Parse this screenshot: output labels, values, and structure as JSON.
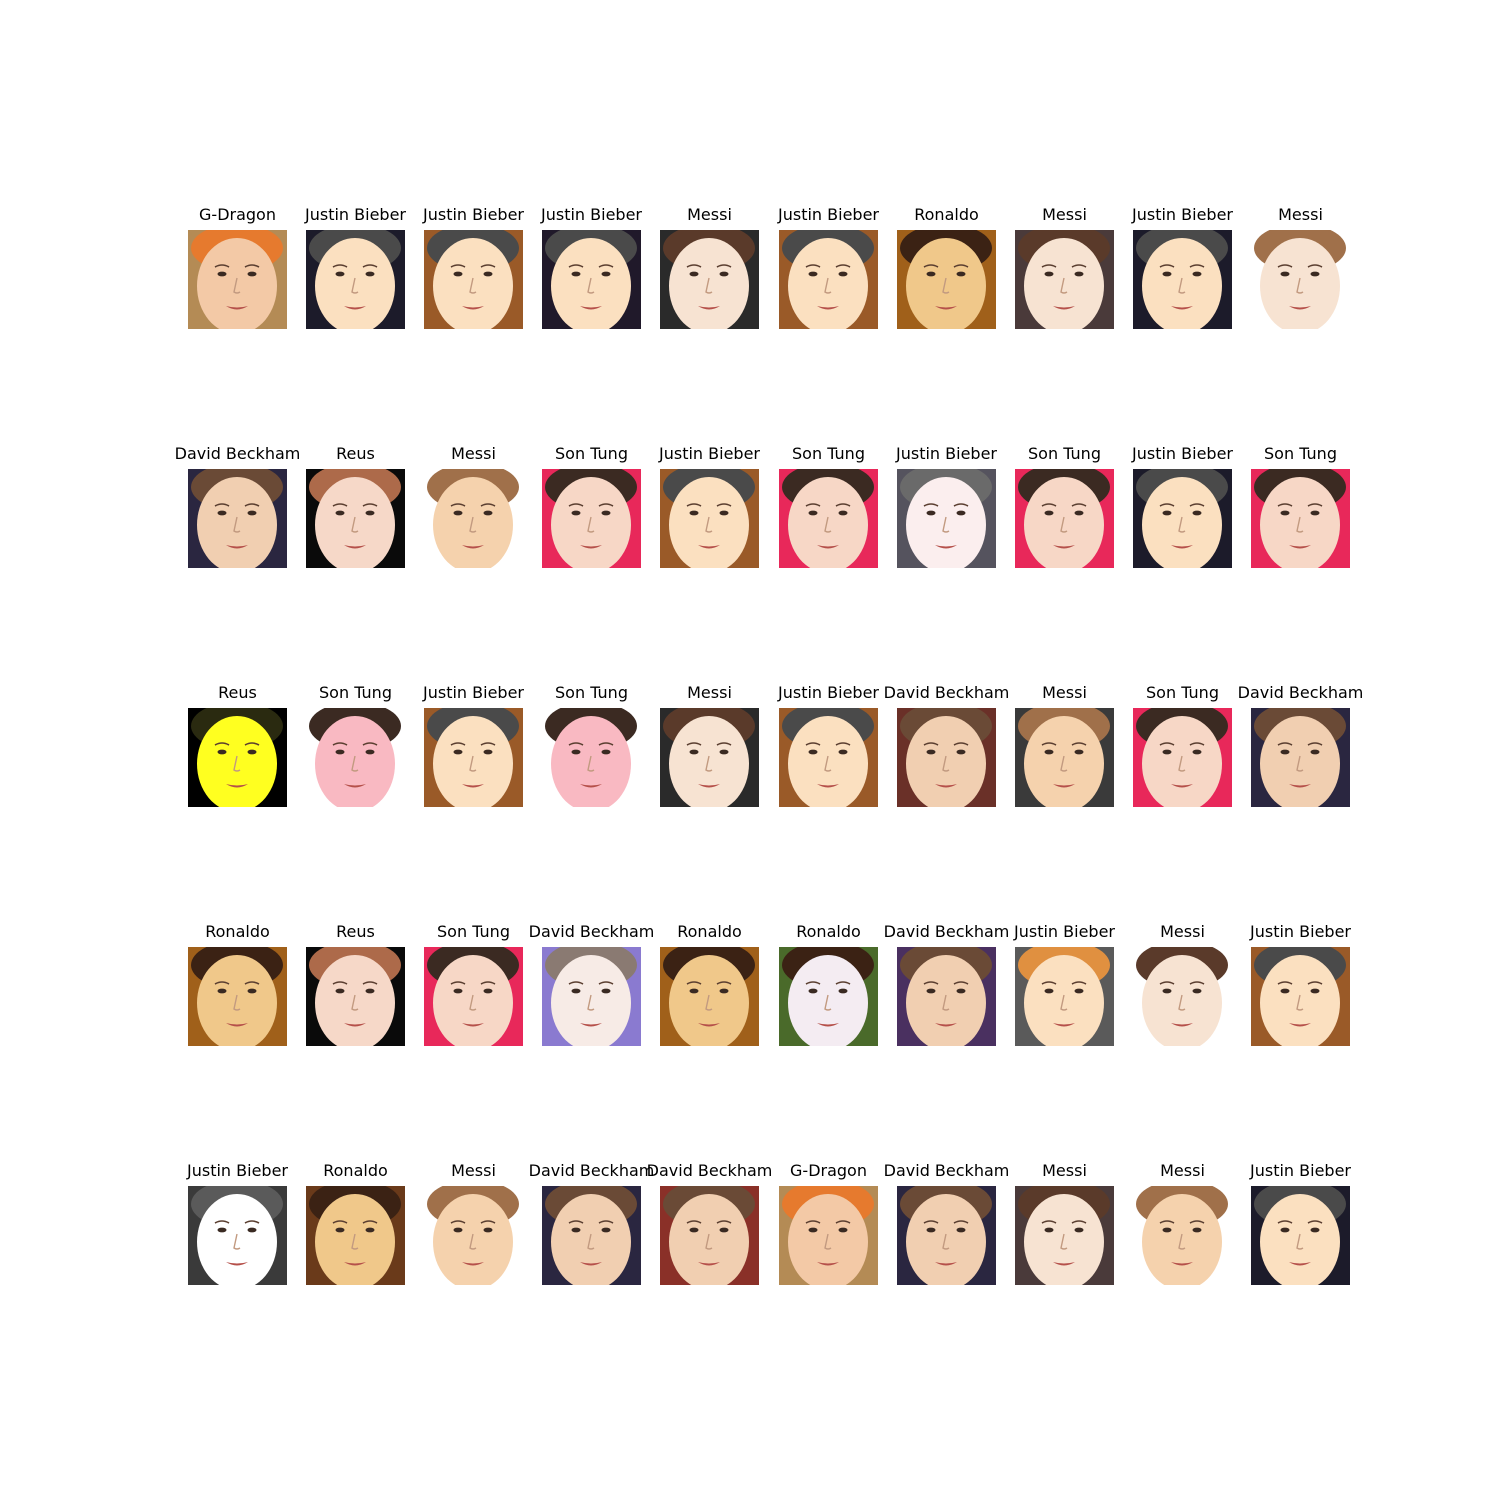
{
  "grid": {
    "rows": 5,
    "cols": 10,
    "cells": [
      {
        "label": "G-Dragon",
        "tone": "#f3c9a6",
        "accent": "#e67a2e",
        "bg": "#b48b55"
      },
      {
        "label": "Justin Bieber",
        "tone": "#fbe0c0",
        "accent": "#4a4a4a",
        "bg": "#1c1b2a"
      },
      {
        "label": "Justin Bieber",
        "tone": "#fbe0c0",
        "accent": "#4a4a4a",
        "bg": "#9a5a28"
      },
      {
        "label": "Justin Bieber",
        "tone": "#fbe0c0",
        "accent": "#4a4a4a",
        "bg": "#20192a"
      },
      {
        "label": "Messi",
        "tone": "#f7e3d2",
        "accent": "#5a3a2a",
        "bg": "#2a2a2a"
      },
      {
        "label": "Justin Bieber",
        "tone": "#fbe0c0",
        "accent": "#4a4a4a",
        "bg": "#9a5a28"
      },
      {
        "label": "Ronaldo",
        "tone": "#f0c88a",
        "accent": "#3b2214",
        "bg": "#a0601a"
      },
      {
        "label": "Messi",
        "tone": "#f7e3d2",
        "accent": "#5a3a2a",
        "bg": "#4a3a3a"
      },
      {
        "label": "Justin Bieber",
        "tone": "#fbe0c0",
        "accent": "#4a4a4a",
        "bg": "#1c1b2a"
      },
      {
        "label": "Messi",
        "tone": "#f7e3d2",
        "accent": "#a0704a",
        "bg": "#ffffff"
      },
      {
        "label": "David Beckham",
        "tone": "#f1cfb1",
        "accent": "#6a4a36",
        "bg": "#2a2640"
      },
      {
        "label": "Reus",
        "tone": "#f6d8c8",
        "accent": "#ad6a4a",
        "bg": "#0a0a0a"
      },
      {
        "label": "Messi",
        "tone": "#f5d2ad",
        "accent": "#a0704a",
        "bg": "#ffffff"
      },
      {
        "label": "Son Tung",
        "tone": "#f7d7c6",
        "accent": "#3b2a22",
        "bg": "#e8285a"
      },
      {
        "label": "Justin Bieber",
        "tone": "#fbe0c0",
        "accent": "#4a4a4a",
        "bg": "#9a5a28"
      },
      {
        "label": "Son Tung",
        "tone": "#f7d7c6",
        "accent": "#3b2a22",
        "bg": "#e8285a"
      },
      {
        "label": "Justin Bieber",
        "tone": "#fbeeee",
        "accent": "#6a6a6a",
        "bg": "#55535e"
      },
      {
        "label": "Son Tung",
        "tone": "#f7d7c6",
        "accent": "#3b2a22",
        "bg": "#e8285a"
      },
      {
        "label": "Justin Bieber",
        "tone": "#fbe0c0",
        "accent": "#4a4a4a",
        "bg": "#1c1b2a"
      },
      {
        "label": "Son Tung",
        "tone": "#f7d7c6",
        "accent": "#3b2a22",
        "bg": "#e8285a"
      },
      {
        "label": "Reus",
        "tone": "#ffff20",
        "accent": "#2a2a10",
        "bg": "#000000"
      },
      {
        "label": "Son Tung",
        "tone": "#f9b9c2",
        "accent": "#3b2a22",
        "bg": "#ffffff"
      },
      {
        "label": "Justin Bieber",
        "tone": "#fbe0c0",
        "accent": "#4a4a4a",
        "bg": "#9a5a28"
      },
      {
        "label": "Son Tung",
        "tone": "#f9b9c2",
        "accent": "#3b2a22",
        "bg": "#ffffff"
      },
      {
        "label": "Messi",
        "tone": "#f7e3d2",
        "accent": "#5a3a2a",
        "bg": "#2a2a2a"
      },
      {
        "label": "Justin Bieber",
        "tone": "#fbe0c0",
        "accent": "#4a4a4a",
        "bg": "#9a5a28"
      },
      {
        "label": "David Beckham",
        "tone": "#f1cfb1",
        "accent": "#6a4a36",
        "bg": "#6a3028"
      },
      {
        "label": "Messi",
        "tone": "#f5d2ad",
        "accent": "#a0704a",
        "bg": "#3a3a3a"
      },
      {
        "label": "Son Tung",
        "tone": "#f7d7c6",
        "accent": "#3b2a22",
        "bg": "#e8285a"
      },
      {
        "label": "David Beckham",
        "tone": "#f1cfb1",
        "accent": "#6a4a36",
        "bg": "#2a2640"
      },
      {
        "label": "Ronaldo",
        "tone": "#f0c88a",
        "accent": "#3b2214",
        "bg": "#a0601a"
      },
      {
        "label": "Reus",
        "tone": "#f6d8c8",
        "accent": "#ad6a4a",
        "bg": "#0a0a0a"
      },
      {
        "label": "Son Tung",
        "tone": "#f7d7c6",
        "accent": "#3b2a22",
        "bg": "#e8285a"
      },
      {
        "label": "David Beckham",
        "tone": "#f7ebe6",
        "accent": "#8a7a72",
        "bg": "#8a7ad0"
      },
      {
        "label": "Ronaldo",
        "tone": "#f0c88a",
        "accent": "#3b2214",
        "bg": "#a0601a"
      },
      {
        "label": "Ronaldo",
        "tone": "#f4ecf2",
        "accent": "#3b2214",
        "bg": "#4a6a2a"
      },
      {
        "label": "David Beckham",
        "tone": "#f1cfb1",
        "accent": "#6a4a36",
        "bg": "#4a3060"
      },
      {
        "label": "Justin Bieber",
        "tone": "#fbe0c0",
        "accent": "#e09040",
        "bg": "#5a5a5a"
      },
      {
        "label": "Messi",
        "tone": "#f7e3d2",
        "accent": "#5a3a2a",
        "bg": "#ffffff"
      },
      {
        "label": "Justin Bieber",
        "tone": "#fbe0c0",
        "accent": "#4a4a4a",
        "bg": "#9a5a28"
      },
      {
        "label": "Justin Bieber",
        "tone": "#ffffff",
        "accent": "#5a5a5a",
        "bg": "#3a3a3a"
      },
      {
        "label": "Ronaldo",
        "tone": "#f0c88a",
        "accent": "#3b2214",
        "bg": "#6a3a1a"
      },
      {
        "label": "Messi",
        "tone": "#f5d2ad",
        "accent": "#a0704a",
        "bg": "#ffffff"
      },
      {
        "label": "David Beckham",
        "tone": "#f1cfb1",
        "accent": "#6a4a36",
        "bg": "#2a2640"
      },
      {
        "label": "David Beckham",
        "tone": "#f1cfb1",
        "accent": "#6a4a36",
        "bg": "#8a3028"
      },
      {
        "label": "G-Dragon",
        "tone": "#f3c9a6",
        "accent": "#e67a2e",
        "bg": "#b48b55"
      },
      {
        "label": "David Beckham",
        "tone": "#f1cfb1",
        "accent": "#6a4a36",
        "bg": "#2a2640"
      },
      {
        "label": "Messi",
        "tone": "#f7e3d2",
        "accent": "#5a3a2a",
        "bg": "#4a3a3a"
      },
      {
        "label": "Messi",
        "tone": "#f5d2ad",
        "accent": "#a0704a",
        "bg": "#ffffff"
      },
      {
        "label": "Justin Bieber",
        "tone": "#fbe0c0",
        "accent": "#4a4a4a",
        "bg": "#1c1b2a"
      }
    ]
  }
}
